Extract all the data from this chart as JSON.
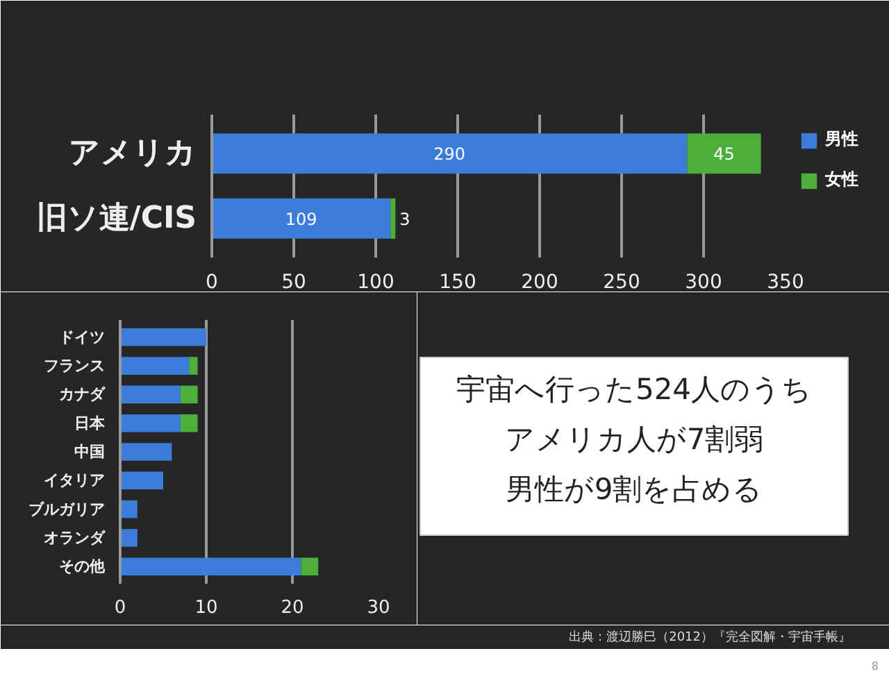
{
  "chart_data": [
    {
      "type": "bar",
      "orientation": "horizontal",
      "stacked": true,
      "categories": [
        "アメリカ",
        "旧ソ連/CIS"
      ],
      "series": [
        {
          "name": "男性",
          "color": "#3b7dd8",
          "values": [
            290,
            109
          ]
        },
        {
          "name": "女性",
          "color": "#4caf3c",
          "values": [
            45,
            3
          ]
        }
      ],
      "xlim": [
        0,
        350
      ],
      "xticks": [
        0,
        50,
        100,
        150,
        200,
        250,
        300,
        350
      ],
      "grid": "x",
      "legend": "right",
      "data_labels": true
    },
    {
      "type": "bar",
      "orientation": "horizontal",
      "stacked": true,
      "categories": [
        "ドイツ",
        "フランス",
        "カナダ",
        "日本",
        "中国",
        "イタリア",
        "ブルガリア",
        "オランダ",
        "その他"
      ],
      "series": [
        {
          "color": "#3b7dd8",
          "values": [
            10,
            8,
            7,
            7,
            6,
            5,
            2,
            2,
            21
          ]
        },
        {
          "color": "#4caf3c",
          "values": [
            0,
            1,
            2,
            2,
            0,
            0,
            0,
            0,
            2
          ]
        }
      ],
      "xlim": [
        0,
        30
      ],
      "xticks": [
        0,
        10,
        20,
        30
      ],
      "grid": "x"
    },
    {
      "type": "other",
      "annotations": [
        "宇宙へ行った524人のうち",
        "アメリカ人が7割弱",
        "男性が9割を占める",
        "出典：渡辺勝巳（2012）『完全図解・宇宙手帳』",
        "8"
      ]
    }
  ]
}
